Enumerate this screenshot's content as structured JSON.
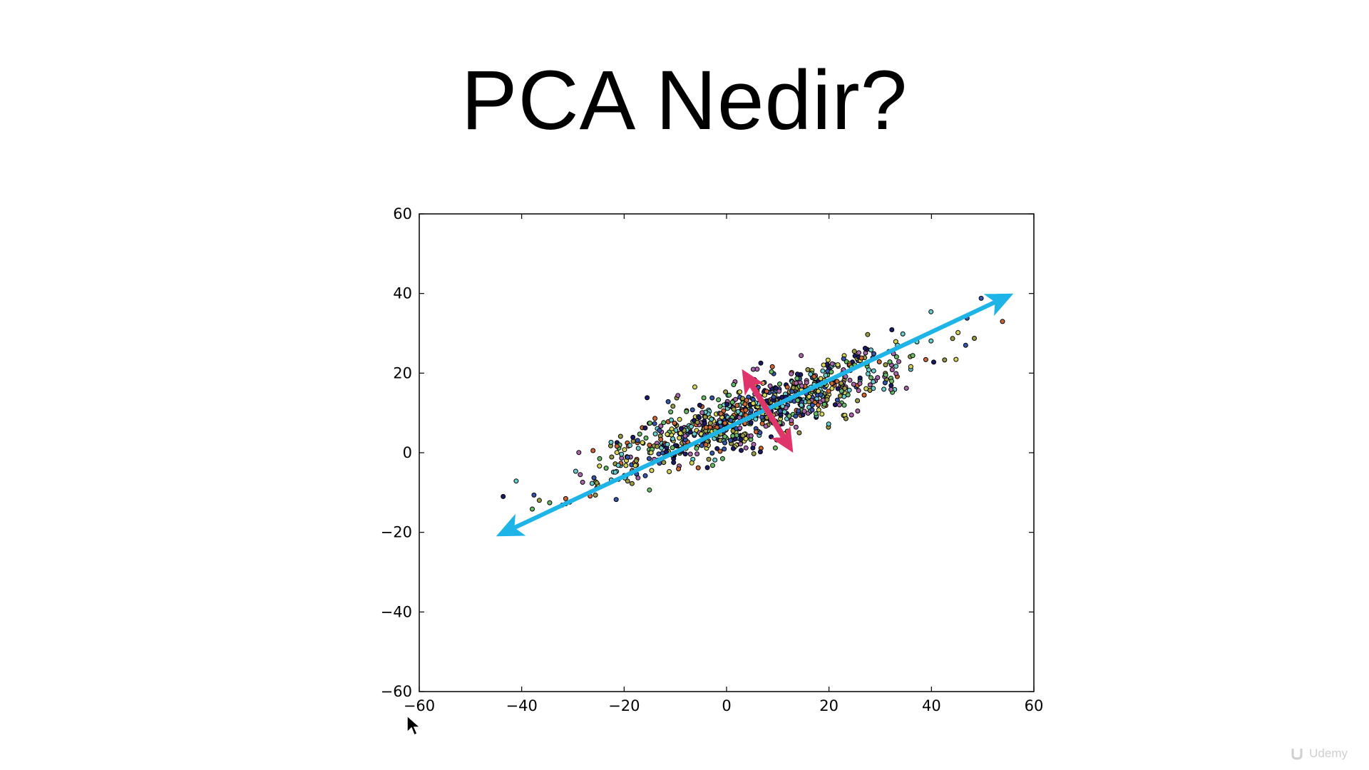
{
  "slide": {
    "title": "PCA Nedir?"
  },
  "watermark": {
    "logo_text": "Udemy"
  },
  "colors": {
    "principal_axis": "#1EB4E8",
    "secondary_axis": "#E0356A",
    "point_stroke": "#000000",
    "point_fill": [
      "#1a1a66",
      "#d4d455",
      "#66bb66",
      "#cc6633",
      "#66cccc",
      "#aa66aa",
      "#3355aa",
      "#999944"
    ]
  },
  "chart_data": {
    "type": "scatter",
    "title": "",
    "xlabel": "",
    "ylabel": "",
    "xlim": [
      -60,
      60
    ],
    "ylim": [
      -60,
      60
    ],
    "xticks": [
      "−60",
      "−40",
      "−20",
      "0",
      "20",
      "40",
      "60"
    ],
    "yticks": [
      "60",
      "40",
      "20",
      "0",
      "−20",
      "−40",
      "−60"
    ],
    "grid": false,
    "legend": "none",
    "distribution": {
      "n_points": 900,
      "center": [
        5,
        10
      ],
      "direction": [
        0.9,
        0.45
      ],
      "spread_along": 17,
      "spread_across": 3.6
    },
    "annotations": [
      {
        "name": "first-principal-component",
        "from": [
          -45,
          -21
        ],
        "to": [
          56,
          40
        ],
        "color": "#1EB4E8",
        "double_headed": true
      },
      {
        "name": "second-principal-component",
        "from": [
          3,
          21
        ],
        "to": [
          13,
          0
        ],
        "color": "#E0356A",
        "double_headed": true
      }
    ]
  }
}
